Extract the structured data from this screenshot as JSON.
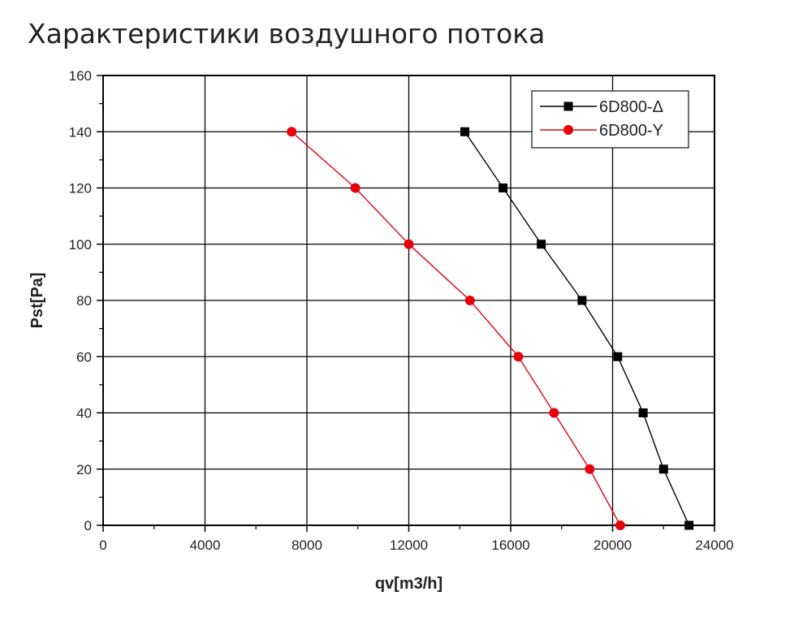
{
  "page": {
    "title": "Характеристики воздушного потока"
  },
  "chart_data": {
    "type": "line",
    "title": "",
    "xlabel": "qv[m3/h]",
    "ylabel": "Pst[Pa]",
    "xlim": [
      0,
      24000
    ],
    "ylim": [
      0,
      160
    ],
    "xticks": [
      0,
      4000,
      8000,
      12000,
      16000,
      20000,
      24000
    ],
    "yticks": [
      0,
      20,
      40,
      60,
      80,
      100,
      120,
      140,
      160
    ],
    "grid": true,
    "legend_position": "top-right",
    "series": [
      {
        "name": "6D800-Δ",
        "color": "#000000",
        "marker": "square",
        "x": [
          14200,
          15700,
          17200,
          18800,
          20200,
          21200,
          22000,
          23000
        ],
        "y": [
          140,
          120,
          100,
          80,
          60,
          40,
          20,
          0
        ]
      },
      {
        "name": "6D800-Y",
        "color": "#e8000b",
        "marker": "circle",
        "x": [
          7400,
          9900,
          12000,
          14400,
          16300,
          17700,
          19100,
          20300
        ],
        "y": [
          140,
          120,
          100,
          80,
          60,
          40,
          20,
          0
        ]
      }
    ]
  }
}
